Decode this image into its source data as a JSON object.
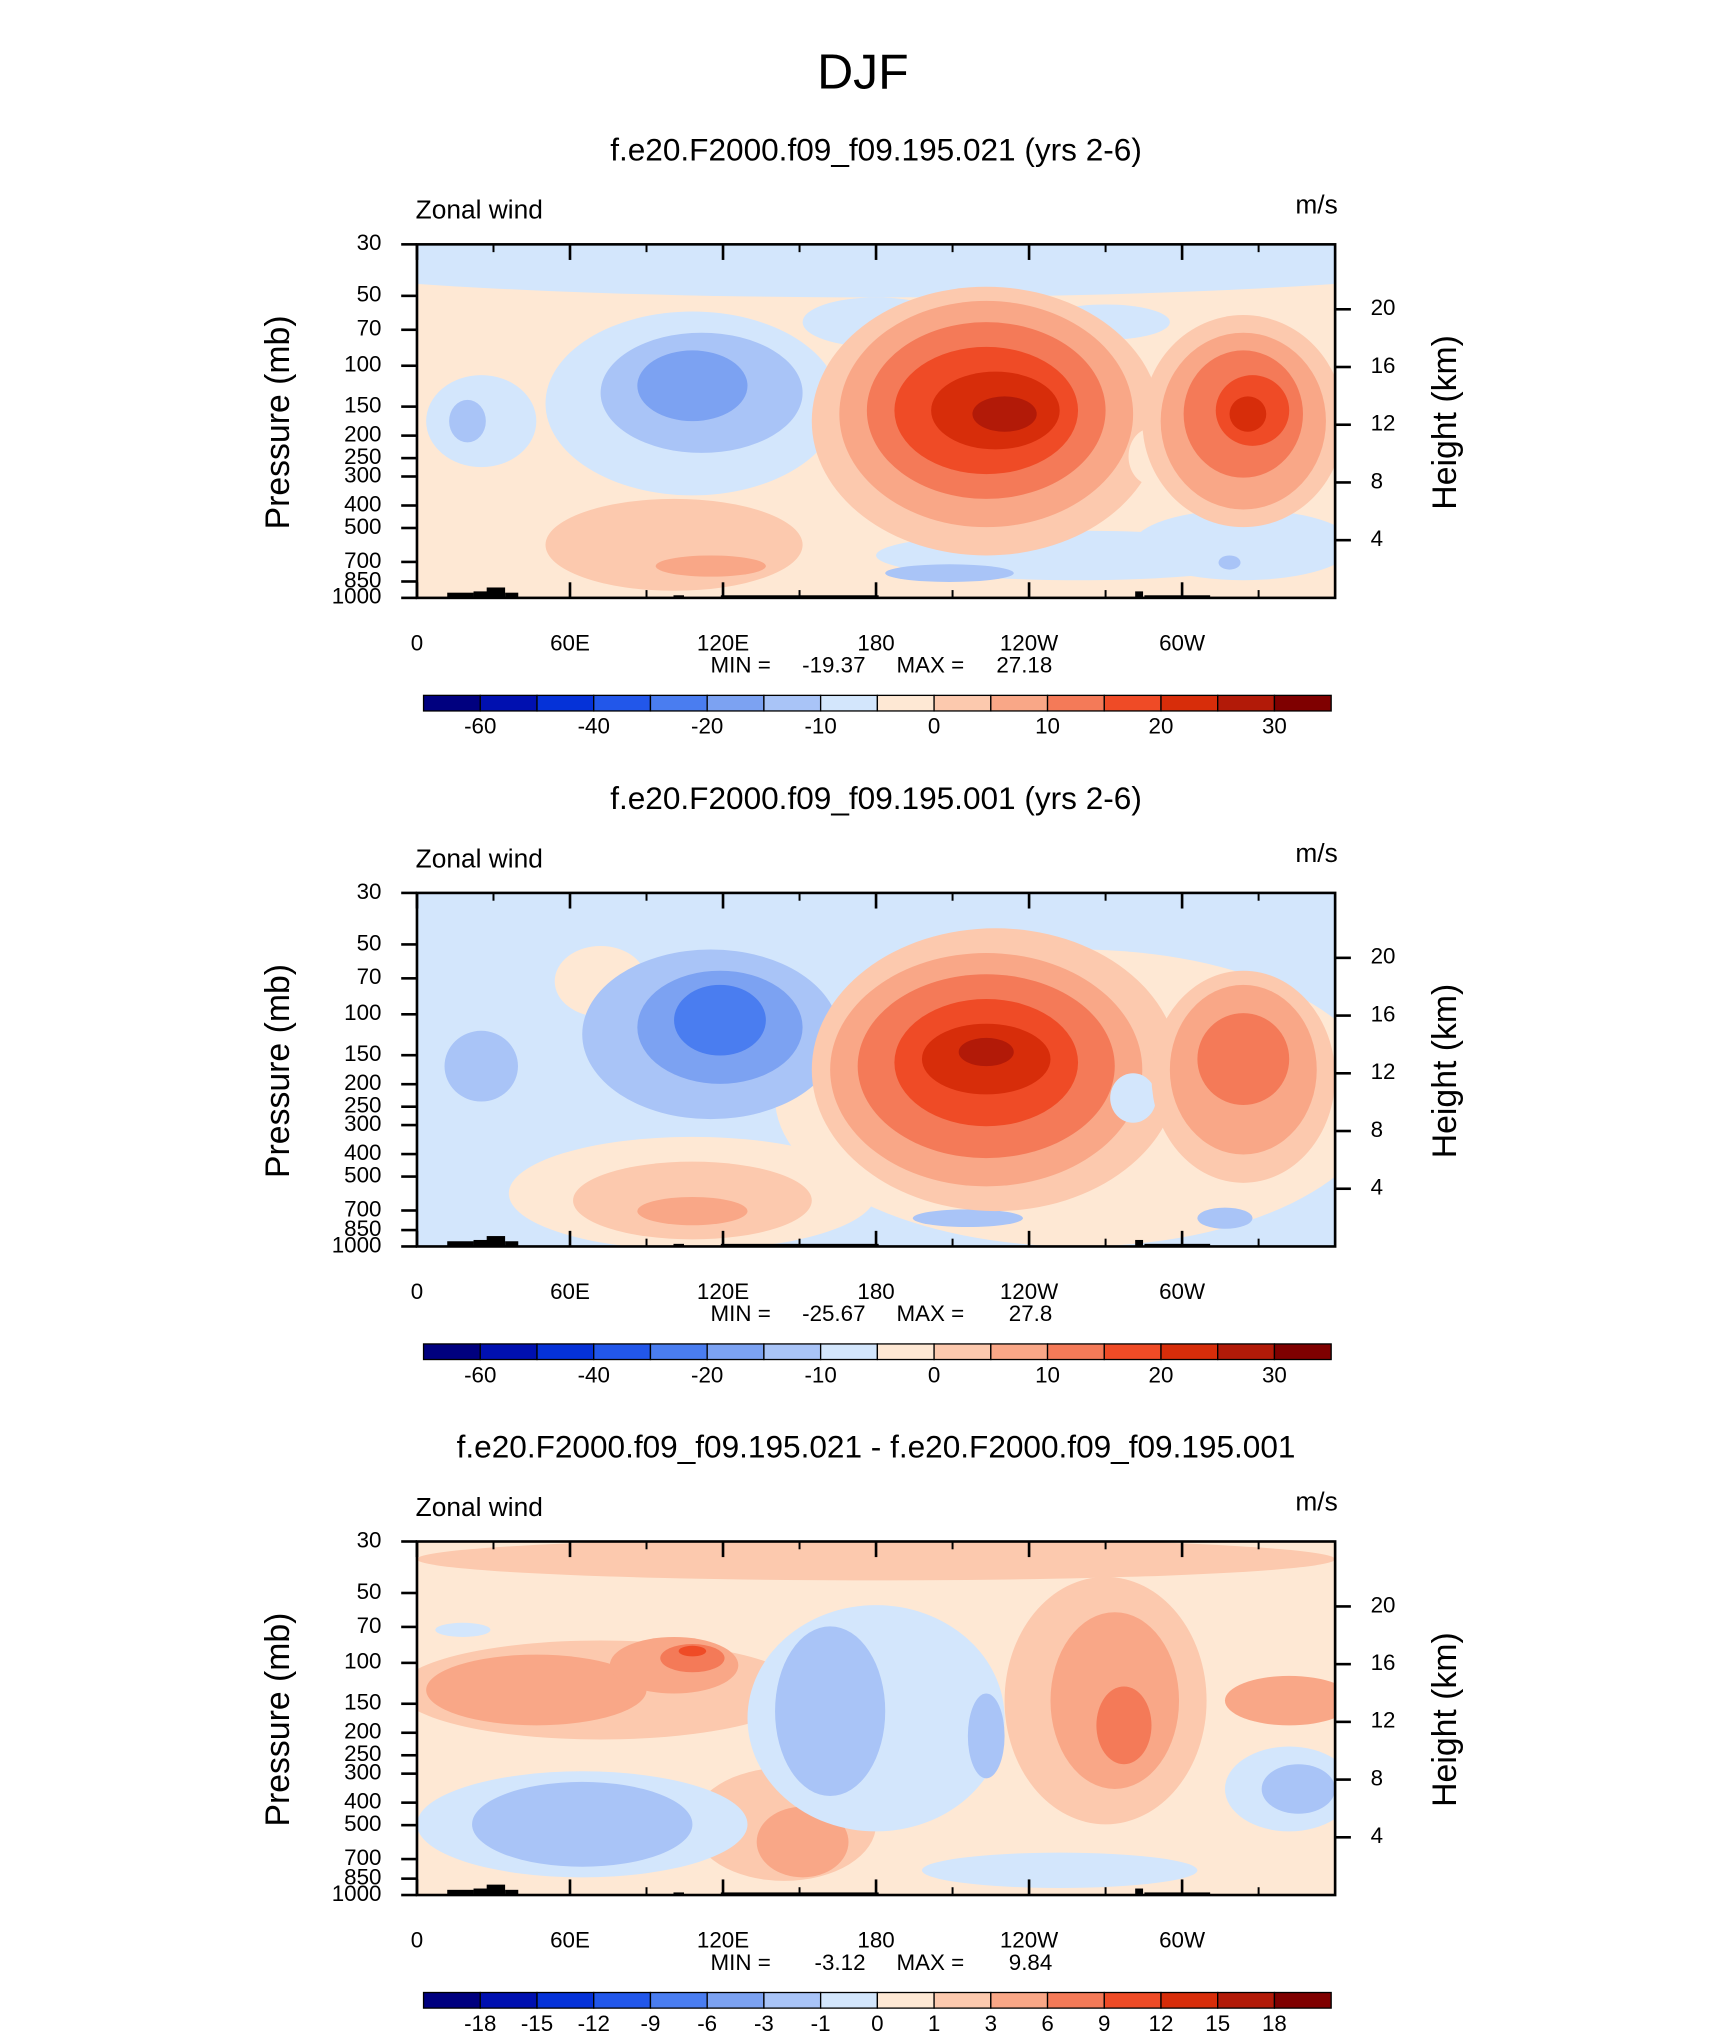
{
  "title": "DJF",
  "chart_data": [
    {
      "type": "contour",
      "title": "f.e20.F2000.f09_f09.195.021 (yrs 2-6)",
      "left_label": "Zonal wind",
      "right_label": "m/s",
      "ylabel": "Pressure (mb)",
      "y2label": "Height (km)",
      "xlim": [
        0,
        360
      ],
      "xticks": [
        0,
        {
          "value": 60,
          "label": "60E"
        },
        {
          "value": 120,
          "label": "120E"
        },
        180,
        {
          "value": 240,
          "label": "120W"
        },
        {
          "value": 300,
          "label": "60W"
        }
      ],
      "ylim": [
        1000,
        30
      ],
      "log_y": true,
      "yticks": [
        30,
        50,
        70,
        100,
        150,
        200,
        250,
        300,
        400,
        500,
        700,
        850,
        1000
      ],
      "y2lim": [
        0,
        24.5
      ],
      "y2ticks": [
        4,
        8,
        12,
        16,
        20
      ],
      "min_label": "MIN =",
      "min": -19.37,
      "max_label": "MAX =",
      "max": 27.18,
      "colorbar": {
        "colors": [
          "#00007f",
          "#0010b0",
          "#0532d8",
          "#2257ea",
          "#4a7df0",
          "#7ca2f2",
          "#a9c4f7",
          "#d3e6fc",
          "#fee8d4",
          "#fcc9ae",
          "#f9a787",
          "#f47a58",
          "#ef4b26",
          "#d72d0a",
          "#b21a08",
          "#7f0000"
        ],
        "labels": [
          -60,
          -40,
          -20,
          -10,
          0,
          10,
          20,
          30
        ]
      }
    },
    {
      "type": "contour",
      "title": "f.e20.F2000.f09_f09.195.001 (yrs 2-6)",
      "left_label": "Zonal wind",
      "right_label": "m/s",
      "ylabel": "Pressure (mb)",
      "y2label": "Height (km)",
      "xlim": [
        0,
        360
      ],
      "xticks": [
        0,
        {
          "value": 60,
          "label": "60E"
        },
        {
          "value": 120,
          "label": "120E"
        },
        180,
        {
          "value": 240,
          "label": "120W"
        },
        {
          "value": 300,
          "label": "60W"
        }
      ],
      "ylim": [
        1000,
        30
      ],
      "log_y": true,
      "yticks": [
        30,
        50,
        70,
        100,
        150,
        200,
        250,
        300,
        400,
        500,
        700,
        850,
        1000
      ],
      "y2lim": [
        0,
        24.5
      ],
      "y2ticks": [
        4,
        8,
        12,
        16,
        20
      ],
      "min_label": "MIN =",
      "min": -25.67,
      "max_label": "MAX =",
      "max": 27.8,
      "colorbar": {
        "colors": [
          "#00007f",
          "#0010b0",
          "#0532d8",
          "#2257ea",
          "#4a7df0",
          "#7ca2f2",
          "#a9c4f7",
          "#d3e6fc",
          "#fee8d4",
          "#fcc9ae",
          "#f9a787",
          "#f47a58",
          "#ef4b26",
          "#d72d0a",
          "#b21a08",
          "#7f0000"
        ],
        "labels": [
          -60,
          -40,
          -20,
          -10,
          0,
          10,
          20,
          30
        ]
      }
    },
    {
      "type": "contour",
      "title": "f.e20.F2000.f09_f09.195.021 - f.e20.F2000.f09_f09.195.001",
      "left_label": "Zonal wind",
      "right_label": "m/s",
      "ylabel": "Pressure (mb)",
      "y2label": "Height (km)",
      "xlim": [
        0,
        360
      ],
      "xticks": [
        0,
        {
          "value": 60,
          "label": "60E"
        },
        {
          "value": 120,
          "label": "120E"
        },
        180,
        {
          "value": 240,
          "label": "120W"
        },
        {
          "value": 300,
          "label": "60W"
        }
      ],
      "ylim": [
        1000,
        30
      ],
      "log_y": true,
      "yticks": [
        30,
        50,
        70,
        100,
        150,
        200,
        250,
        300,
        400,
        500,
        700,
        850,
        1000
      ],
      "y2lim": [
        0,
        24.5
      ],
      "y2ticks": [
        4,
        8,
        12,
        16,
        20
      ],
      "min_label": "MIN =",
      "min": -3.12,
      "max_label": "MAX =",
      "max": 9.84,
      "colorbar": {
        "colors": [
          "#00007f",
          "#0010b0",
          "#0532d8",
          "#2257ea",
          "#4a7df0",
          "#7ca2f2",
          "#a9c4f7",
          "#d3e6fc",
          "#fee8d4",
          "#fcc9ae",
          "#f9a787",
          "#f47a58",
          "#ef4b26",
          "#d72d0a",
          "#b21a08",
          "#7f0000"
        ],
        "labels": [
          -18,
          -15,
          -12,
          -9,
          -6,
          -3,
          -1,
          0,
          1,
          3,
          6,
          9,
          12,
          15,
          18
        ]
      }
    }
  ]
}
